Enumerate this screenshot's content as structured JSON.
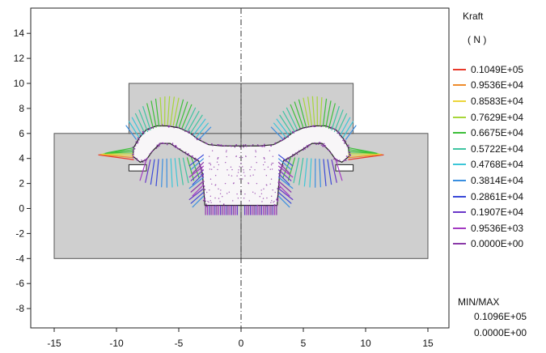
{
  "chart_data": {
    "type": "vector-field",
    "x_ticks": [
      "-15",
      "-10",
      "-5",
      "0",
      "5",
      "10",
      "15"
    ],
    "y_ticks": [
      "14",
      "12",
      "10",
      "8",
      "6",
      "4",
      "2",
      "0",
      "-2",
      "-4",
      "-6",
      "-8"
    ],
    "xlim": [
      -17,
      17
    ],
    "ylim": [
      -9.2,
      15.5
    ],
    "regions": [
      {
        "name": "outer-block",
        "x": [
          -15,
          15
        ],
        "y": [
          -4,
          6
        ]
      },
      {
        "name": "upper-block",
        "x": [
          -9,
          9
        ],
        "y": [
          6,
          10
        ]
      }
    ],
    "symmetry_axis_x": 0,
    "legend": {
      "title": "Kraft",
      "unit": "( N )",
      "entries": [
        {
          "label": "0.1049E+05",
          "color": "#e8392a"
        },
        {
          "label": "0.9536E+04",
          "color": "#ee8c2c"
        },
        {
          "label": "0.8583E+04",
          "color": "#ecd53a"
        },
        {
          "label": "0.7629E+04",
          "color": "#a8d63a"
        },
        {
          "label": "0.6675E+04",
          "color": "#3dbf3a"
        },
        {
          "label": "0.5722E+04",
          "color": "#3fc4a2"
        },
        {
          "label": "0.4768E+04",
          "color": "#3cc6d8"
        },
        {
          "label": "0.3814E+04",
          "color": "#3a8fe0"
        },
        {
          "label": "0.2861E+04",
          "color": "#3a49d8"
        },
        {
          "label": "0.1907E+04",
          "color": "#6a37c8"
        },
        {
          "label": "0.9536E+03",
          "color": "#a33ac2"
        },
        {
          "label": "0.0000E+00",
          "color": "#8a3aa8"
        }
      ]
    },
    "minmax": {
      "title": "MIN/MAX",
      "max": "0.1096E+05",
      "min": "0.0000E+00"
    }
  }
}
